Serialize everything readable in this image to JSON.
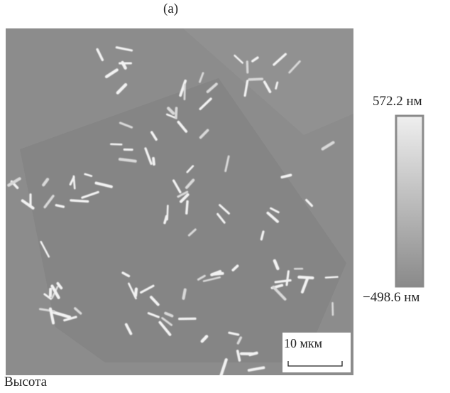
{
  "figure": {
    "panel_label": "(a)",
    "scale_bar": "10 мкм",
    "colorbar": {
      "max_label": "572.2 нм",
      "min_label": "−498.6 нм"
    },
    "caption": "Высота"
  }
}
